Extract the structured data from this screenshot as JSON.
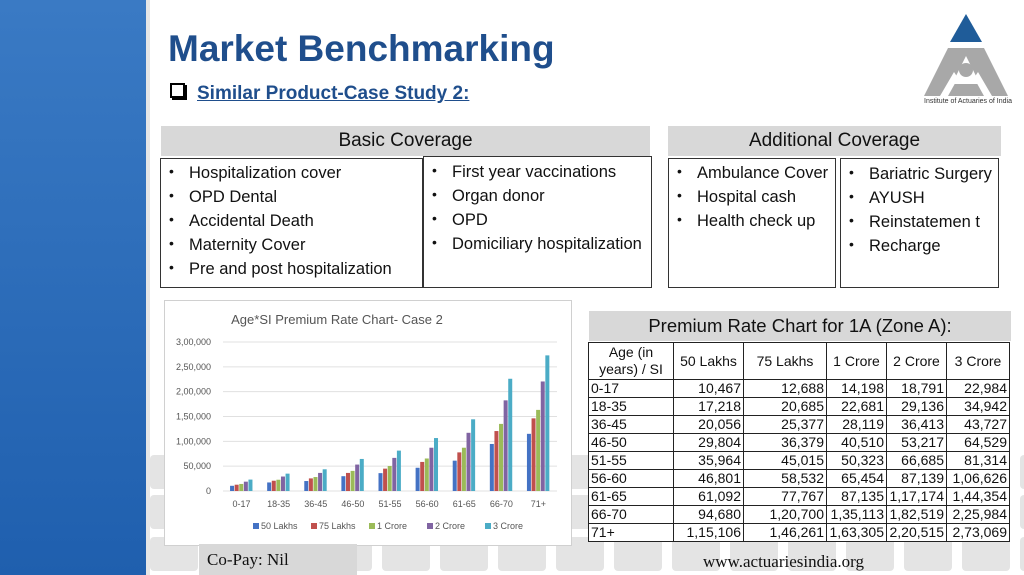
{
  "title": "Market Benchmarking",
  "subtitle": "Similar Product-Case Study 2:",
  "logo": {
    "caption": "Institute of Actuaries of India",
    "color": "#1f5c99"
  },
  "basic_coverage": {
    "header": "Basic Coverage",
    "left_items": [
      "Hospitalization cover",
      "OPD Dental",
      "Accidental Death",
      "Maternity Cover",
      "Pre and post hospitalization"
    ],
    "right_items": [
      "First year vaccinations",
      "Organ donor",
      "OPD",
      "Domiciliary hospitalization"
    ]
  },
  "additional_coverage": {
    "header": "Additional Coverage",
    "left_items": [
      "Ambulance Cover",
      "Hospital cash",
      "Health check up"
    ],
    "right_items": [
      "Bariatric Surgery",
      "AYUSH",
      "Reinstatemen t",
      "Recharge"
    ]
  },
  "premium_table": {
    "title": "Premium Rate Chart for 1A  (Zone A):",
    "corner_header": "Age (in years) / SI",
    "columns": [
      "50 Lakhs",
      "75 Lakhs",
      "1 Crore",
      "2 Crore",
      "3 Crore"
    ],
    "rows": [
      {
        "age": "0-17",
        "values": [
          "10,467",
          "12,688",
          "14,198",
          "18,791",
          "22,984"
        ]
      },
      {
        "age": "18-35",
        "values": [
          "17,218",
          "20,685",
          "22,681",
          "29,136",
          "34,942"
        ]
      },
      {
        "age": "36-45",
        "values": [
          "20,056",
          "25,377",
          "28,119",
          "36,413",
          "43,727"
        ]
      },
      {
        "age": "46-50",
        "values": [
          "29,804",
          "36,379",
          "40,510",
          "53,217",
          "64,529"
        ]
      },
      {
        "age": "51-55",
        "values": [
          "35,964",
          "45,015",
          "50,323",
          "66,685",
          "81,314"
        ]
      },
      {
        "age": "56-60",
        "values": [
          "46,801",
          "58,532",
          "65,454",
          "87,139",
          "1,06,626"
        ]
      },
      {
        "age": "61-65",
        "values": [
          "61,092",
          "77,767",
          "87,135",
          "1,17,174",
          "1,44,354"
        ]
      },
      {
        "age": "66-70",
        "values": [
          "94,680",
          "1,20,700",
          "1,35,113",
          "1,82,519",
          "2,25,984"
        ]
      },
      {
        "age": "71+",
        "values": [
          "1,15,106",
          "1,46,261",
          "1,63,305",
          "2,20,515",
          "2,73,069"
        ]
      }
    ]
  },
  "chart_data": {
    "type": "bar",
    "title": "Age*SI Premium Rate Chart- Case 2",
    "categories": [
      "0-17",
      "18-35",
      "36-45",
      "46-50",
      "51-55",
      "56-60",
      "61-65",
      "66-70",
      "71+"
    ],
    "y_ticks": [
      "0",
      "50,000",
      "1,00,000",
      "1,50,000",
      "2,00,000",
      "2,50,000",
      "3,00,000"
    ],
    "ylim": [
      0,
      300000
    ],
    "legend_position": "bottom",
    "series": [
      {
        "name": "50 Lakhs",
        "color": "#4472c4",
        "values": [
          10467,
          17218,
          20056,
          29804,
          35964,
          46801,
          61092,
          94680,
          115106
        ]
      },
      {
        "name": "75 Lakhs",
        "color": "#c0504d",
        "values": [
          12688,
          20685,
          25377,
          36379,
          45015,
          58532,
          77767,
          120700,
          146261
        ]
      },
      {
        "name": "1 Crore",
        "color": "#9bbb59",
        "values": [
          14198,
          22681,
          28119,
          40510,
          50323,
          65454,
          87135,
          135113,
          163305
        ]
      },
      {
        "name": "2 Crore",
        "color": "#8064a2",
        "values": [
          18791,
          29136,
          36413,
          53217,
          66685,
          87139,
          117174,
          182519,
          220515
        ]
      },
      {
        "name": "3 Crore",
        "color": "#4bacc6",
        "values": [
          22984,
          34942,
          43727,
          64529,
          81314,
          106626,
          144354,
          225984,
          273069
        ]
      }
    ]
  },
  "footer": {
    "copay": "Co-Pay: Nil",
    "website": "www.actuariesindia.org"
  }
}
